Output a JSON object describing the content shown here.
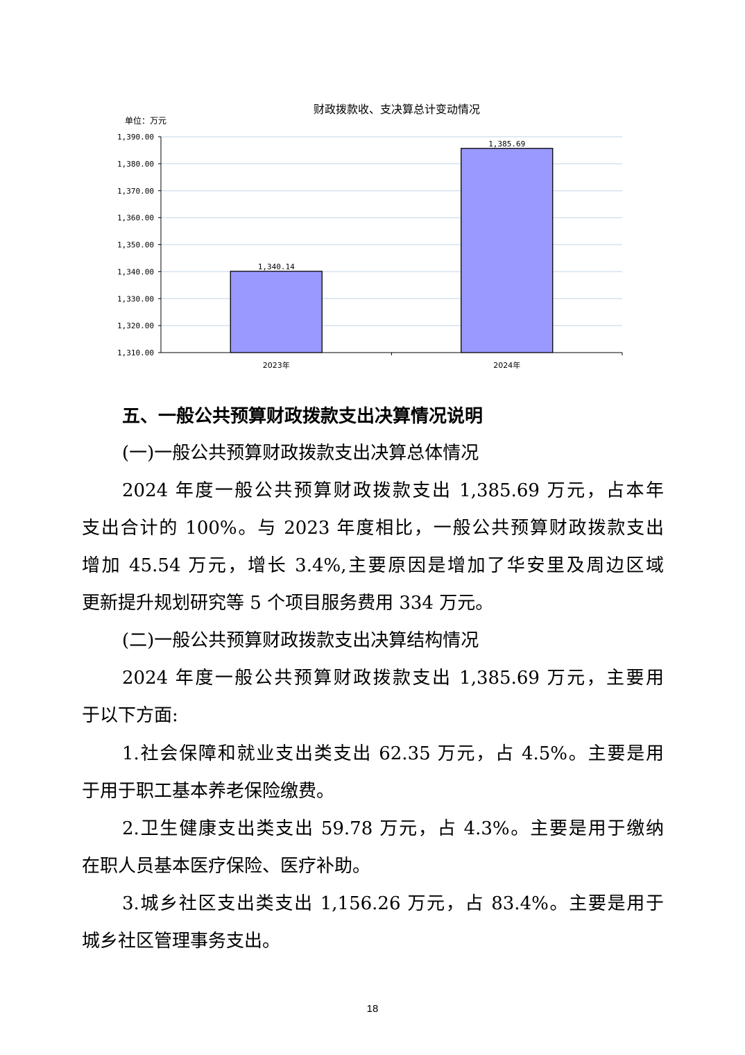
{
  "chart_data": {
    "type": "bar",
    "title": "财政拨款收、支决算总计变动情况",
    "unit_label": "单位：万元",
    "categories": [
      "2023年",
      "2024年"
    ],
    "values": [
      1340.14,
      1385.69
    ],
    "data_labels": [
      "1,340.14",
      "1,385.69"
    ],
    "ylim": [
      1310,
      1390
    ],
    "yticks": [
      "1,310.00",
      "1,320.00",
      "1,330.00",
      "1,340.00",
      "1,350.00",
      "1,360.00",
      "1,370.00",
      "1,380.00",
      "1,390.00"
    ],
    "grid": true,
    "bar_color": "#9999ff"
  },
  "body": {
    "heading": "五、一般公共预算财政拨款支出决算情况说明",
    "sub1": "(一)一般公共预算财政拨款支出决算总体情况",
    "p1": [
      "2024 年度一般公共预算财政拨款支出 1,385.69 万元，占本年",
      "支出合计的 100%。与 2023 年度相比，一般公共预算财政拨款支出",
      "增加 45.54 万元，增长 3.4%,主要原因是增加了华安里及周边区域",
      "更新提升规划研究等 5 个项目服务费用 334 万元。"
    ],
    "sub2": "(二)一般公共预算财政拨款支出决算结构情况",
    "p2": [
      "2024 年度一般公共预算财政拨款支出 1,385.69 万元，主要用",
      "于以下方面:"
    ],
    "item1": [
      "1.社会保障和就业支出类支出 62.35 万元，占 4.5%。主要是用",
      "于用于职工基本养老保险缴费。"
    ],
    "item2": [
      "2.卫生健康支出类支出 59.78 万元，占 4.3%。主要是用于缴纳",
      "在职人员基本医疗保险、医疗补助。"
    ],
    "item3": [
      "3.城乡社区支出类支出 1,156.26 万元，占 83.4%。主要是用于",
      "城乡社区管理事务支出。"
    ]
  },
  "page_number": "18"
}
